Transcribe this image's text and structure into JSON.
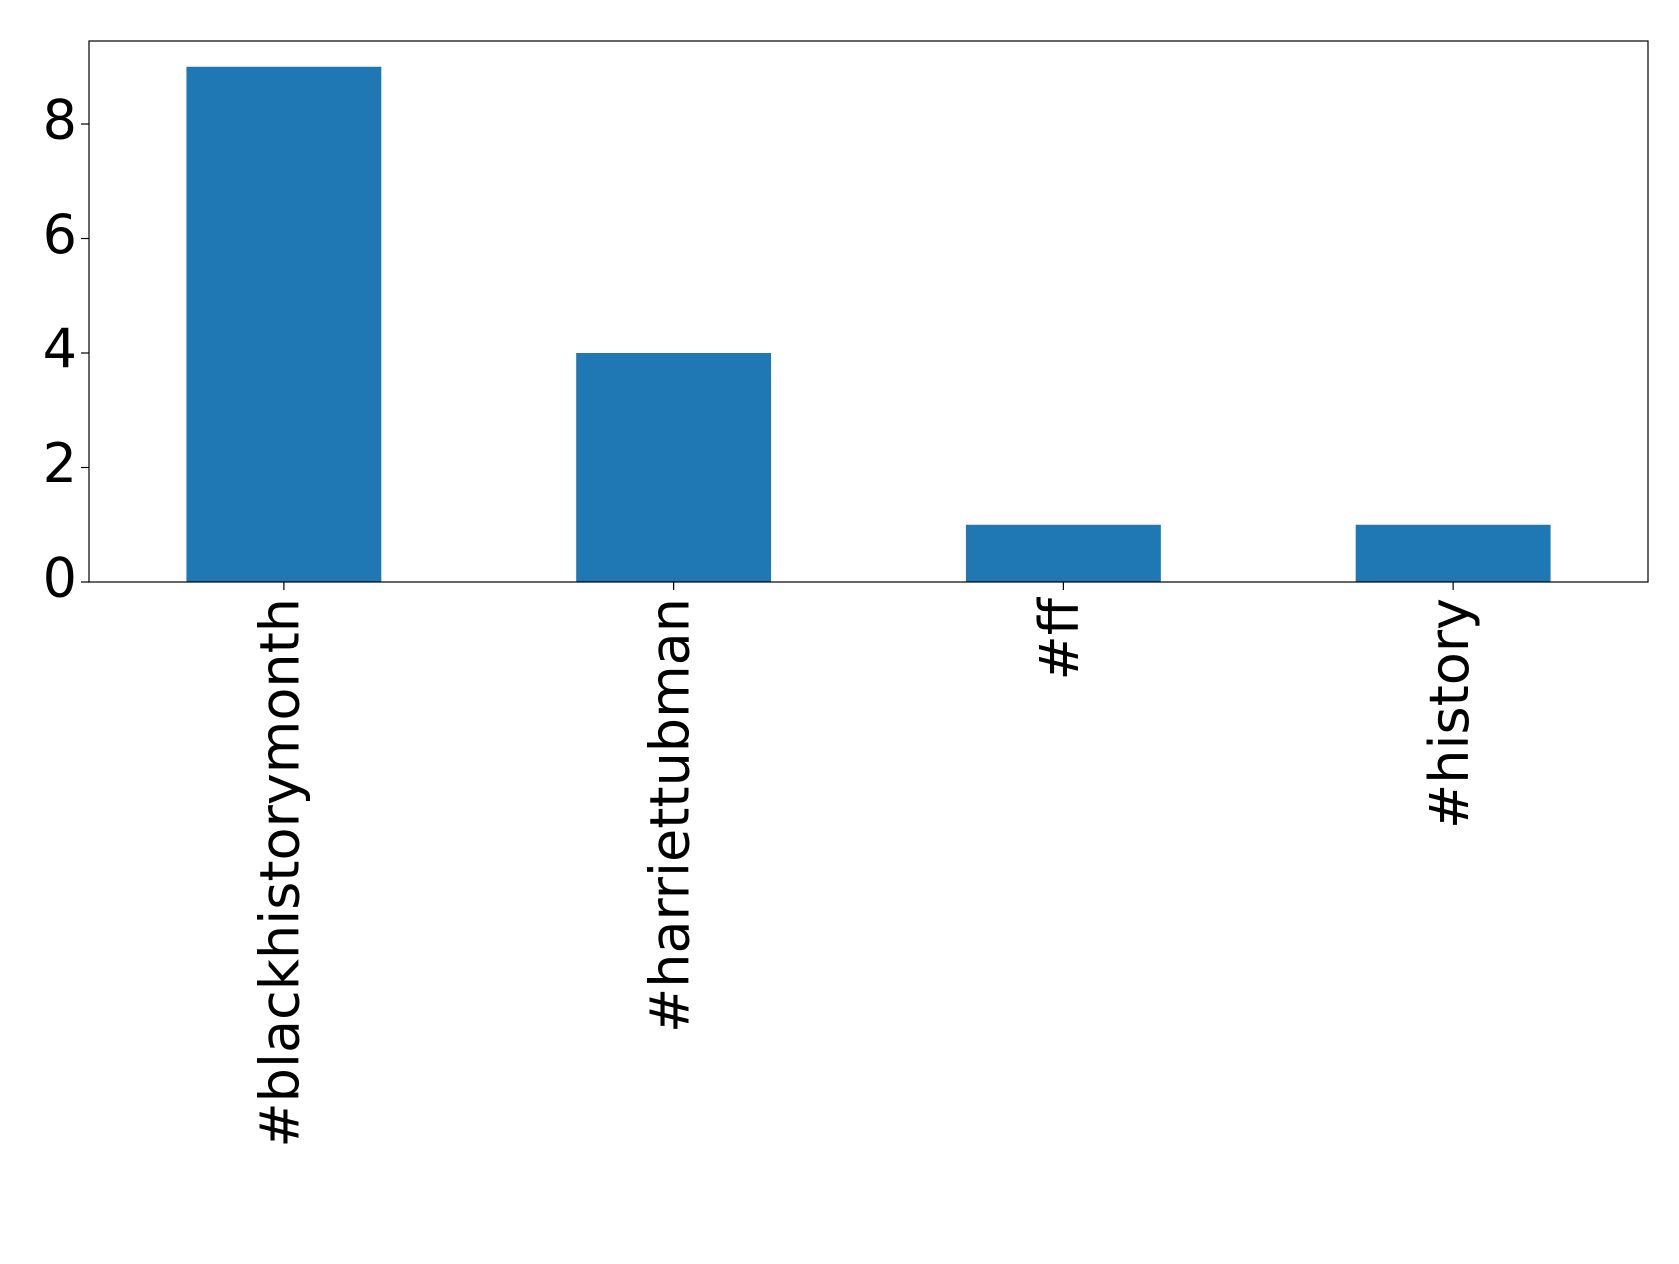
{
  "chart_data": {
    "type": "bar",
    "categories": [
      "#blackhistorymonth",
      "#harriettubman",
      "#ff",
      "#history"
    ],
    "values": [
      9,
      4,
      1,
      1
    ],
    "color": "#1f77b4",
    "ylim": [
      0,
      9.45
    ],
    "yticks": [
      0,
      2,
      4,
      6,
      8
    ]
  }
}
